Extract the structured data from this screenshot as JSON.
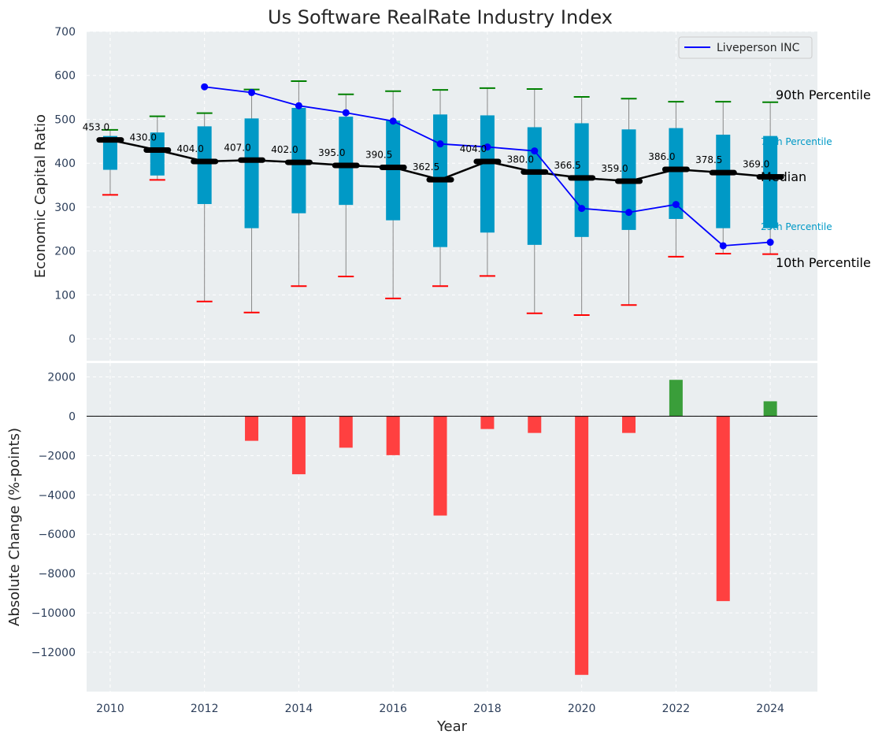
{
  "chart_data": [
    {
      "type": "box",
      "title": "Us Software RealRate Industry Index",
      "xlabel": "",
      "ylabel": "Economic Capital Ratio",
      "ylim": [
        -50,
        700
      ],
      "yticks": [
        0,
        100,
        200,
        300,
        400,
        500,
        600,
        700
      ],
      "grid": true,
      "legend_position": "top-right",
      "boxes": [
        {
          "year": 2010,
          "p10": 328,
          "p25": 385,
          "median": 453.0,
          "p75": 462,
          "p90": 476,
          "median_label": "453.0"
        },
        {
          "year": 2011,
          "p10": 362,
          "p25": 372,
          "median": 430.0,
          "p75": 470,
          "p90": 507,
          "median_label": "430.0"
        },
        {
          "year": 2012,
          "p10": 85,
          "p25": 307,
          "median": 404.0,
          "p75": 484,
          "p90": 514,
          "median_label": "404.0"
        },
        {
          "year": 2013,
          "p10": 60,
          "p25": 252,
          "median": 407.0,
          "p75": 502,
          "p90": 568,
          "median_label": "407.0"
        },
        {
          "year": 2014,
          "p10": 120,
          "p25": 286,
          "median": 402.0,
          "p75": 526,
          "p90": 587,
          "median_label": "402.0"
        },
        {
          "year": 2015,
          "p10": 142,
          "p25": 305,
          "median": 395.0,
          "p75": 506,
          "p90": 557,
          "median_label": "395.0"
        },
        {
          "year": 2016,
          "p10": 92,
          "p25": 270,
          "median": 390.5,
          "p75": 497,
          "p90": 564,
          "median_label": "390.5"
        },
        {
          "year": 2017,
          "p10": 120,
          "p25": 209,
          "median": 362.5,
          "p75": 511,
          "p90": 567,
          "median_label": "362.5"
        },
        {
          "year": 2018,
          "p10": 143,
          "p25": 242,
          "median": 404.0,
          "p75": 509,
          "p90": 571,
          "median_label": "404.0"
        },
        {
          "year": 2019,
          "p10": 58,
          "p25": 214,
          "median": 380.0,
          "p75": 482,
          "p90": 569,
          "median_label": "380.0"
        },
        {
          "year": 2020,
          "p10": 54,
          "p25": 232,
          "median": 366.5,
          "p75": 491,
          "p90": 551,
          "median_label": "366.5"
        },
        {
          "year": 2021,
          "p10": 77,
          "p25": 248,
          "median": 359.0,
          "p75": 477,
          "p90": 547,
          "median_label": "359.0"
        },
        {
          "year": 2022,
          "p10": 187,
          "p25": 273,
          "median": 386.0,
          "p75": 480,
          "p90": 540,
          "median_label": "386.0"
        },
        {
          "year": 2023,
          "p10": 194,
          "p25": 252,
          "median": 378.5,
          "p75": 465,
          "p90": 540,
          "median_label": "378.5"
        },
        {
          "year": 2024,
          "p10": 193,
          "p25": 252,
          "median": 369.0,
          "p75": 462,
          "p90": 539,
          "median_label": "369.0"
        }
      ],
      "series": [
        {
          "name": "Liveperson INC",
          "color": "#0000ff",
          "x": [
            2012,
            2013,
            2014,
            2015,
            2016,
            2017,
            2018,
            2019,
            2020,
            2021,
            2022,
            2023,
            2024
          ],
          "values": [
            574,
            561,
            531,
            515,
            496,
            444,
            437,
            428,
            297,
            288,
            306,
            212,
            220
          ]
        }
      ],
      "annotations": {
        "p90": "90th Percentile",
        "p75": "75th Percentile",
        "median": "Median",
        "p25": "25th Percentile",
        "p10": "10th Percentile"
      },
      "colors": {
        "box": "#0099c6",
        "median_line": "#000000",
        "whisker_top": "#008000",
        "whisker_bottom": "#ff0000",
        "whisker_line": "#888888",
        "plot_bg": "#eaeef0"
      }
    },
    {
      "type": "bar",
      "xlabel": "Year",
      "ylabel": "Absolute Change (%-points)",
      "ylim": [
        -14000,
        2700
      ],
      "yticks": [
        2000,
        0,
        -2000,
        -4000,
        -6000,
        -8000,
        -10000,
        -12000
      ],
      "ytick_labels": [
        "2000",
        "0",
        "−2000",
        "−4000",
        "−6000",
        "−8000",
        "−10000",
        "−12000"
      ],
      "xlim": [
        2009.5,
        2025
      ],
      "xticks": [
        2010,
        2012,
        2014,
        2016,
        2018,
        2020,
        2022,
        2024
      ],
      "grid": true,
      "x": [
        2013,
        2014,
        2015,
        2016,
        2017,
        2018,
        2019,
        2020,
        2021,
        2022,
        2023,
        2024
      ],
      "values": [
        -1250,
        -2950,
        -1600,
        -1980,
        -5050,
        -650,
        -850,
        -13150,
        -850,
        1850,
        -9400,
        760
      ],
      "colors": {
        "positive": "#3a9e3a",
        "negative": "#ff4040"
      }
    }
  ]
}
